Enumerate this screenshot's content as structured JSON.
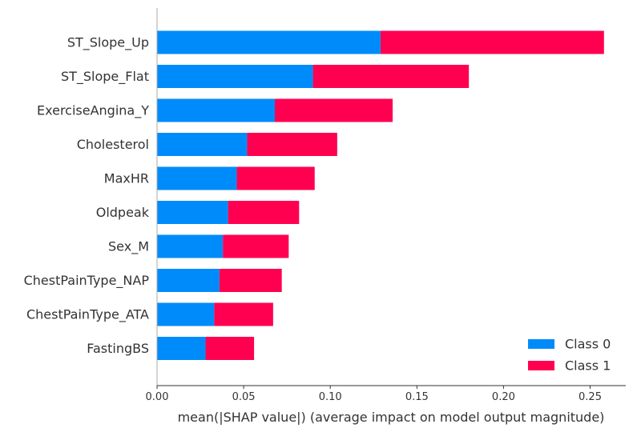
{
  "chart_data": {
    "type": "bar",
    "orientation": "horizontal",
    "stacked": true,
    "title": "",
    "xlabel": "mean(|SHAP value|) (average impact on model output magnitude)",
    "ylabel": "",
    "xlim": [
      0,
      0.27
    ],
    "xticks": [
      "0.00",
      "0.05",
      "0.10",
      "0.15",
      "0.20",
      "0.25"
    ],
    "categories": [
      "ST_Slope_Up",
      "ST_Slope_Flat",
      "ExerciseAngina_Y",
      "Cholesterol",
      "MaxHR",
      "Oldpeak",
      "Sex_M",
      "ChestPainType_NAP",
      "ChestPainType_ATA",
      "FastingBS"
    ],
    "series": [
      {
        "name": "Class 0",
        "color": "#008bfb",
        "values": [
          0.129,
          0.09,
          0.068,
          0.052,
          0.046,
          0.041,
          0.038,
          0.036,
          0.033,
          0.028
        ]
      },
      {
        "name": "Class 1",
        "color": "#ff0051",
        "values": [
          0.129,
          0.09,
          0.068,
          0.052,
          0.045,
          0.041,
          0.038,
          0.036,
          0.034,
          0.028
        ]
      }
    ],
    "legend": {
      "position": "bottom-right"
    },
    "grid": false
  }
}
